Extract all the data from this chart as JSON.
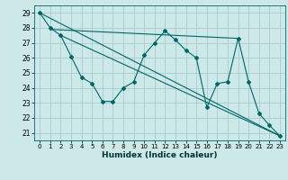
{
  "title": "",
  "xlabel": "Humidex (Indice chaleur)",
  "bg_color": "#cce8e8",
  "grid_color": "#aacccc",
  "line_color": "#006666",
  "xlim": [
    -0.5,
    23.5
  ],
  "ylim": [
    20.5,
    29.5
  ],
  "yticks": [
    21,
    22,
    23,
    24,
    25,
    26,
    27,
    28,
    29
  ],
  "xticks": [
    0,
    1,
    2,
    3,
    4,
    5,
    6,
    7,
    8,
    9,
    10,
    11,
    12,
    13,
    14,
    15,
    16,
    17,
    18,
    19,
    20,
    21,
    22,
    23
  ],
  "series1_x": [
    0,
    1,
    2,
    3,
    4,
    5,
    6,
    7,
    8,
    9,
    10,
    11,
    12,
    13,
    14,
    15,
    16,
    17,
    18,
    19,
    20,
    21,
    22,
    23
  ],
  "series1_y": [
    29.0,
    28.0,
    27.5,
    26.1,
    24.7,
    24.3,
    23.1,
    23.1,
    24.0,
    24.4,
    26.2,
    27.0,
    27.8,
    27.2,
    26.5,
    26.0,
    22.7,
    24.3,
    24.4,
    27.3,
    24.4,
    22.3,
    21.5,
    20.8
  ],
  "line2_x": [
    0,
    23
  ],
  "line2_y": [
    29.0,
    20.8
  ],
  "line3_x": [
    1,
    19
  ],
  "line3_y": [
    27.9,
    27.3
  ],
  "line4_x": [
    2,
    23
  ],
  "line4_y": [
    27.5,
    20.8
  ]
}
